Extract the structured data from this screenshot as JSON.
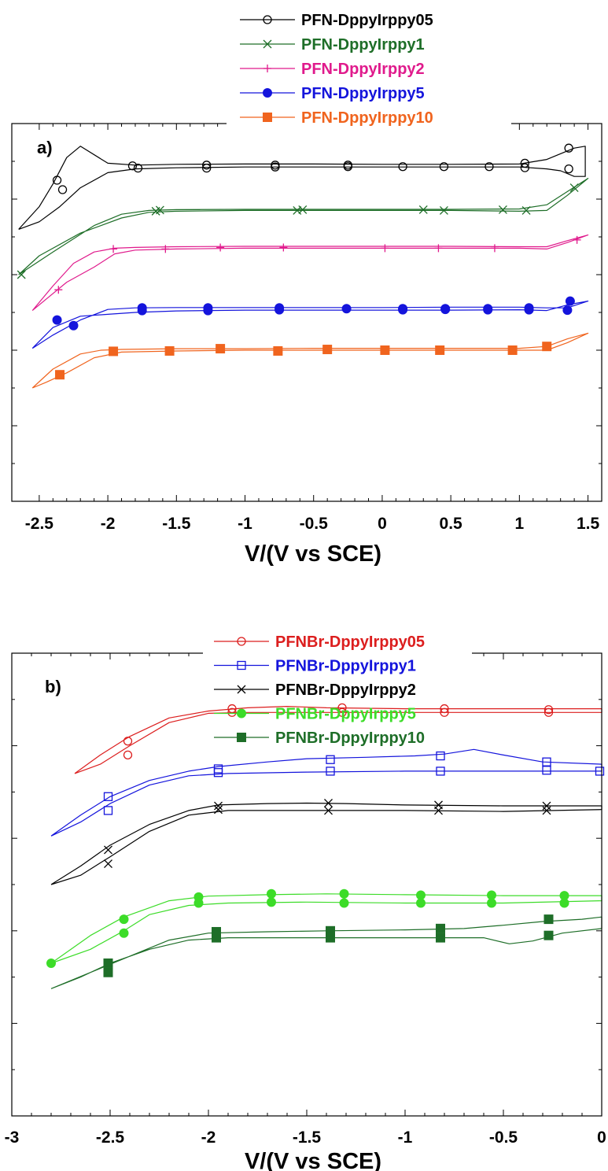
{
  "chart_data": [
    {
      "type": "line",
      "panel_label": "a)",
      "xlabel": "V/(V vs SCE)",
      "ylabel": "",
      "xlim": [
        -2.7,
        1.6
      ],
      "x_ticks": [
        -2.5,
        -2,
        -1.5,
        -1,
        -0.5,
        0,
        0.5,
        1,
        1.5
      ],
      "x_tick_labels": [
        "-2.5",
        "-2",
        "-1.5",
        "-1",
        "-0.5",
        "0",
        "0.5",
        "1",
        "1.5"
      ],
      "ylim": [
        0,
        10
      ],
      "y_tick_labels_shown": false,
      "legend_position": "top-center",
      "series": [
        {
          "name": "PFN-DppyIrppy05",
          "color": "#000000",
          "marker": "open-circle",
          "x": [
            -2.65,
            -2.5,
            -2.4,
            -2.3,
            -2.2,
            -2.0,
            -1.8,
            -1.5,
            -1.0,
            -0.5,
            0.0,
            0.5,
            1.0,
            1.2,
            1.4,
            1.48,
            1.48,
            1.4,
            1.3,
            1.2,
            1.0,
            0.5,
            0.0,
            -0.5,
            -1.0,
            -1.5,
            -1.8,
            -2.0,
            -2.2,
            -2.35,
            -2.5,
            -2.65
          ],
          "y": [
            7.2,
            7.8,
            8.4,
            9.1,
            9.4,
            8.95,
            8.9,
            8.92,
            8.93,
            8.93,
            8.92,
            8.92,
            8.93,
            9.05,
            9.35,
            9.4,
            8.6,
            8.6,
            8.75,
            8.8,
            8.85,
            8.85,
            8.85,
            8.85,
            8.85,
            8.83,
            8.8,
            8.7,
            8.3,
            7.8,
            7.4,
            7.2
          ],
          "marker_x": [
            -2.37,
            -2.33,
            -1.82,
            -1.78,
            -1.28,
            -1.28,
            -0.78,
            -0.78,
            -0.25,
            -0.25,
            0.15,
            0.45,
            0.78,
            1.04,
            1.04,
            1.36,
            1.36
          ],
          "marker_y": [
            8.5,
            8.25,
            8.88,
            8.82,
            8.9,
            8.82,
            8.9,
            8.85,
            8.9,
            8.86,
            8.86,
            8.86,
            8.86,
            8.95,
            8.83,
            9.35,
            8.8
          ]
        },
        {
          "name": "PFN-DppyIrppy1",
          "color": "#1e6e28",
          "marker": "x-cross",
          "x": [
            -2.65,
            -2.4,
            -2.1,
            -1.9,
            -1.7,
            -1.5,
            -1.0,
            -0.5,
            0.0,
            0.5,
            1.0,
            1.2,
            1.35,
            1.5,
            1.5,
            1.35,
            1.2,
            1.0,
            0.5,
            0.0,
            -0.5,
            -1.0,
            -1.5,
            -1.7,
            -1.9,
            -2.2,
            -2.5,
            -2.65
          ],
          "y": [
            6.0,
            6.6,
            7.3,
            7.6,
            7.7,
            7.72,
            7.73,
            7.73,
            7.73,
            7.73,
            7.74,
            7.85,
            8.2,
            8.55,
            8.55,
            8.1,
            7.7,
            7.68,
            7.7,
            7.7,
            7.7,
            7.7,
            7.68,
            7.65,
            7.5,
            7.1,
            6.5,
            6.0
          ],
          "marker_x": [
            -2.63,
            -1.65,
            -1.62,
            -0.62,
            -0.58,
            0.3,
            0.45,
            0.88,
            1.05,
            1.4
          ],
          "marker_y": [
            6.0,
            7.68,
            7.71,
            7.7,
            7.72,
            7.72,
            7.7,
            7.72,
            7.7,
            8.3
          ]
        },
        {
          "name": "PFN-DppyIrppy2",
          "color": "#e01a8c",
          "marker": "plus",
          "x": [
            -2.55,
            -2.4,
            -2.25,
            -2.1,
            -1.95,
            -1.8,
            -1.5,
            -1.0,
            -0.5,
            0.0,
            0.5,
            1.0,
            1.2,
            1.35,
            1.5,
            1.5,
            1.35,
            1.2,
            1.0,
            0.5,
            0.0,
            -0.5,
            -1.0,
            -1.5,
            -1.8,
            -1.95,
            -2.1,
            -2.3,
            -2.45,
            -2.55
          ],
          "y": [
            5.05,
            5.7,
            6.3,
            6.6,
            6.7,
            6.72,
            6.74,
            6.75,
            6.75,
            6.75,
            6.75,
            6.74,
            6.74,
            6.9,
            7.05,
            7.05,
            6.85,
            6.68,
            6.7,
            6.7,
            6.7,
            6.7,
            6.7,
            6.68,
            6.65,
            6.55,
            6.2,
            5.8,
            5.35,
            5.05
          ],
          "marker_x": [
            -2.36,
            -1.96,
            -1.58,
            -1.18,
            -0.72,
            0.02,
            0.41,
            0.82,
            1.42
          ],
          "marker_y": [
            5.6,
            6.68,
            6.68,
            6.72,
            6.72,
            6.7,
            6.7,
            6.7,
            6.92
          ]
        },
        {
          "name": "PFN-DppyIrppy5",
          "color": "#1414dc",
          "marker": "filled-circle",
          "x": [
            -2.55,
            -2.4,
            -2.2,
            -2.0,
            -1.8,
            -1.5,
            -1.0,
            -0.5,
            0.0,
            0.5,
            1.0,
            1.2,
            1.35,
            1.5,
            1.5,
            1.35,
            1.2,
            1.0,
            0.5,
            0.0,
            -0.5,
            -1.0,
            -1.5,
            -1.8,
            -2.0,
            -2.2,
            -2.4,
            -2.55
          ],
          "y": [
            4.05,
            4.4,
            4.8,
            5.08,
            5.12,
            5.13,
            5.13,
            5.13,
            5.13,
            5.14,
            5.14,
            5.12,
            5.12,
            5.3,
            5.3,
            5.2,
            5.05,
            5.07,
            5.06,
            5.06,
            5.06,
            5.06,
            5.04,
            5.0,
            4.95,
            4.9,
            4.6,
            4.05
          ],
          "marker_x": [
            -2.37,
            -2.25,
            -1.75,
            -1.75,
            -1.27,
            -1.27,
            -0.75,
            -0.75,
            -0.26,
            0.15,
            0.15,
            0.46,
            0.46,
            0.77,
            0.77,
            1.07,
            1.07,
            1.37,
            1.35
          ],
          "marker_y": [
            4.8,
            4.65,
            5.12,
            5.05,
            5.12,
            5.05,
            5.12,
            5.07,
            5.1,
            5.1,
            5.07,
            5.1,
            5.08,
            5.1,
            5.07,
            5.12,
            5.07,
            5.3,
            5.06
          ]
        },
        {
          "name": "PFN-DppyIrppy10",
          "color": "#f0641e",
          "marker": "filled-square",
          "x": [
            -2.55,
            -2.4,
            -2.2,
            -2.05,
            -1.9,
            -1.5,
            -1.0,
            -0.5,
            0.0,
            0.5,
            1.0,
            1.2,
            1.35,
            1.5,
            1.5,
            1.35,
            1.2,
            1.0,
            0.5,
            0.0,
            -0.5,
            -1.0,
            -1.5,
            -1.9,
            -2.1,
            -2.3,
            -2.45,
            -2.55
          ],
          "y": [
            3.0,
            3.5,
            3.9,
            4.0,
            4.02,
            4.04,
            4.04,
            4.05,
            4.05,
            4.05,
            4.05,
            4.1,
            4.3,
            4.45,
            4.45,
            4.2,
            4.0,
            4.0,
            4.0,
            4.0,
            4.0,
            4.0,
            3.98,
            3.95,
            3.8,
            3.4,
            3.15,
            3.0
          ],
          "marker_x": [
            -2.35,
            -1.96,
            -1.55,
            -1.18,
            -0.76,
            -0.4,
            0.02,
            0.42,
            0.95,
            1.2
          ],
          "marker_y": [
            3.35,
            3.97,
            3.98,
            4.04,
            3.98,
            4.02,
            4.0,
            4.0,
            4.0,
            4.1
          ]
        }
      ]
    },
    {
      "type": "line",
      "panel_label": "b)",
      "xlabel": "V/(V vs SCE)",
      "ylabel": "",
      "xlim": [
        -3.0,
        0.0
      ],
      "x_ticks": [
        -3,
        -2.5,
        -2,
        -1.5,
        -1,
        -0.5,
        0
      ],
      "x_tick_labels": [
        "-3",
        "-2.5",
        "-2",
        "-1.5",
        "-1",
        "-0.5",
        "0"
      ],
      "ylim": [
        0,
        10
      ],
      "y_tick_labels_shown": false,
      "legend_position": "top-center",
      "series": [
        {
          "name": "PFNBr-DppyIrppy05",
          "color": "#dc1e1e",
          "marker": "open-circle",
          "x": [
            -2.68,
            -2.55,
            -2.4,
            -2.2,
            -2.0,
            -1.8,
            -1.6,
            -1.4,
            -1.0,
            -0.5,
            0.0,
            0.0,
            -0.5,
            -1.0,
            -1.5,
            -1.8,
            -2.0,
            -2.2,
            -2.4,
            -2.55,
            -2.68
          ],
          "y": [
            7.4,
            7.8,
            8.2,
            8.6,
            8.75,
            8.82,
            8.85,
            8.82,
            8.8,
            8.8,
            8.8,
            8.72,
            8.72,
            8.72,
            8.72,
            8.72,
            8.7,
            8.5,
            8.0,
            7.6,
            7.4
          ],
          "marker_x": [
            -2.41,
            -2.41,
            -1.88,
            -1.88,
            -1.32,
            -1.32,
            -0.8,
            -0.8,
            -0.27,
            -0.27
          ],
          "marker_y": [
            8.1,
            7.8,
            8.8,
            8.72,
            8.82,
            8.72,
            8.8,
            8.72,
            8.78,
            8.72
          ]
        },
        {
          "name": "PFNBr-DppyIrppy1",
          "color": "#1414dc",
          "marker": "open-square",
          "x": [
            -2.8,
            -2.65,
            -2.5,
            -2.3,
            -2.1,
            -1.95,
            -1.7,
            -1.5,
            -1.2,
            -0.95,
            -0.8,
            -0.65,
            -0.5,
            -0.3,
            0.0,
            0.0,
            -0.5,
            -1.0,
            -1.5,
            -1.9,
            -2.1,
            -2.3,
            -2.5,
            -2.65,
            -2.8
          ],
          "y": [
            6.05,
            6.5,
            6.9,
            7.25,
            7.45,
            7.55,
            7.65,
            7.72,
            7.75,
            7.78,
            7.82,
            7.92,
            7.8,
            7.65,
            7.6,
            7.45,
            7.45,
            7.45,
            7.43,
            7.4,
            7.35,
            7.15,
            6.75,
            6.35,
            6.05
          ],
          "marker_x": [
            -2.51,
            -2.51,
            -1.95,
            -1.95,
            -1.38,
            -1.38,
            -0.82,
            -0.82,
            -0.28,
            -0.28,
            -0.01
          ],
          "marker_y": [
            6.9,
            6.6,
            7.5,
            7.42,
            7.7,
            7.45,
            7.78,
            7.45,
            7.65,
            7.47,
            7.45
          ]
        },
        {
          "name": "PFNBr-DppyIrppy2",
          "color": "#000000",
          "marker": "x-cross",
          "x": [
            -2.8,
            -2.65,
            -2.5,
            -2.3,
            -2.1,
            -1.95,
            -1.7,
            -1.5,
            -1.3,
            -1.0,
            -0.5,
            0.0,
            0.0,
            -0.5,
            -1.0,
            -1.5,
            -1.9,
            -2.1,
            -2.3,
            -2.5,
            -2.65,
            -2.8
          ],
          "y": [
            5.0,
            5.4,
            5.85,
            6.3,
            6.6,
            6.72,
            6.75,
            6.76,
            6.75,
            6.72,
            6.7,
            6.7,
            6.62,
            6.58,
            6.6,
            6.6,
            6.6,
            6.5,
            6.15,
            5.6,
            5.2,
            5.0
          ],
          "marker_x": [
            -2.51,
            -2.51,
            -1.95,
            -1.95,
            -1.39,
            -1.39,
            -0.83,
            -0.83,
            -0.28,
            -0.28
          ],
          "marker_y": [
            5.75,
            5.45,
            6.7,
            6.62,
            6.76,
            6.6,
            6.72,
            6.6,
            6.7,
            6.6
          ]
        },
        {
          "name": "PFNBr-DppyIrppy5",
          "color": "#3cdc28",
          "marker": "filled-circle",
          "x": [
            -2.8,
            -2.6,
            -2.43,
            -2.2,
            -2.0,
            -1.7,
            -1.4,
            -1.0,
            -0.5,
            0.0,
            0.0,
            -0.5,
            -1.0,
            -1.5,
            -1.9,
            -2.1,
            -2.3,
            -2.43,
            -2.6,
            -2.8
          ],
          "y": [
            3.3,
            3.9,
            4.3,
            4.65,
            4.75,
            4.78,
            4.8,
            4.78,
            4.76,
            4.76,
            4.65,
            4.6,
            4.6,
            4.62,
            4.6,
            4.55,
            4.35,
            4.0,
            3.6,
            3.3
          ],
          "marker_x": [
            -2.8,
            -2.43,
            -2.43,
            -2.05,
            -2.05,
            -1.68,
            -1.68,
            -1.31,
            -1.31,
            -0.92,
            -0.92,
            -0.56,
            -0.56,
            -0.19,
            -0.19
          ],
          "marker_y": [
            3.3,
            4.25,
            3.95,
            4.73,
            4.6,
            4.8,
            4.62,
            4.8,
            4.6,
            4.77,
            4.6,
            4.77,
            4.6,
            4.76,
            4.6
          ]
        },
        {
          "name": "PFNBr-DppyIrppy10",
          "color": "#1e6e28",
          "marker": "filled-square",
          "x": [
            -2.8,
            -2.6,
            -2.4,
            -2.2,
            -2.0,
            -1.7,
            -1.4,
            -1.0,
            -0.7,
            -0.5,
            -0.3,
            -0.1,
            0.0,
            0.0,
            -0.2,
            -0.35,
            -0.47,
            -0.6,
            -1.0,
            -1.5,
            -1.9,
            -2.1,
            -2.3,
            -2.5,
            -2.65,
            -2.8
          ],
          "y": [
            2.75,
            3.1,
            3.45,
            3.8,
            3.95,
            3.98,
            4.0,
            4.02,
            4.05,
            4.12,
            4.2,
            4.25,
            4.3,
            4.05,
            3.95,
            3.78,
            3.72,
            3.85,
            3.85,
            3.85,
            3.85,
            3.8,
            3.6,
            3.3,
            3.0,
            2.75
          ],
          "marker_x": [
            -2.51,
            -2.51,
            -1.96,
            -1.96,
            -1.38,
            -1.38,
            -0.82,
            -0.82,
            -0.27,
            -0.27
          ],
          "marker_y": [
            3.3,
            3.1,
            3.98,
            3.85,
            4.0,
            3.85,
            4.05,
            3.85,
            4.25,
            3.9
          ]
        }
      ]
    }
  ]
}
